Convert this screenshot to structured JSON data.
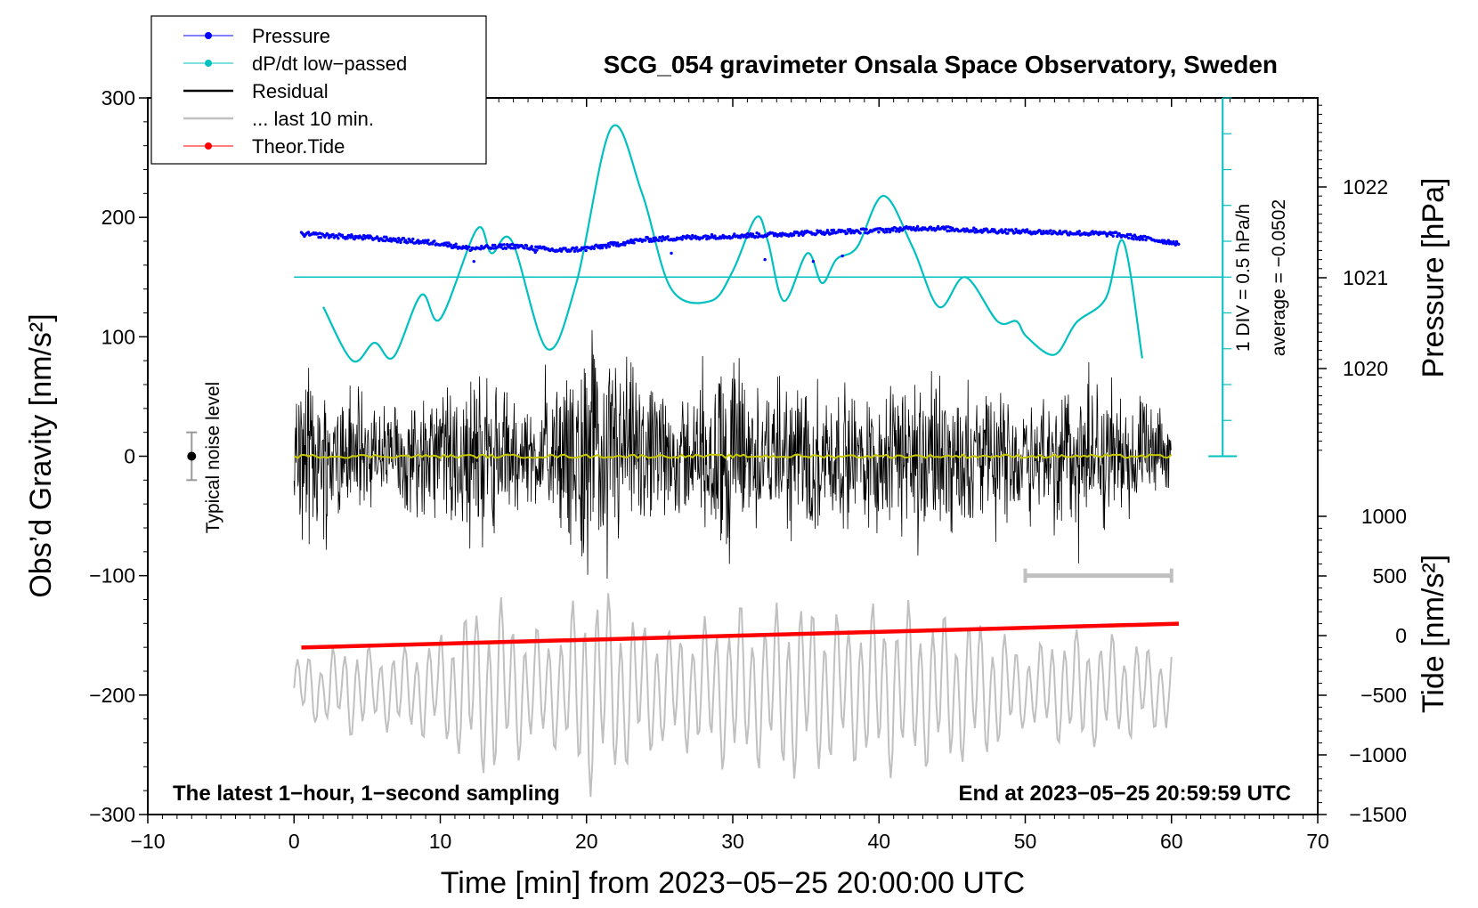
{
  "chart_data": {
    "type": "line",
    "title": "SCG_054 gravimeter Onsala Space Observatory, Sweden",
    "xlabel": "Time [min] from 2023−05−25 20:00:00 UTC",
    "ylabel": "Obs’d Gravity [nm/s²]",
    "y2label_pressure": "Pressure [hPa]",
    "y2label_tide": "Tide [nm/s²]",
    "xlim": [
      -10,
      70
    ],
    "ylim": [
      -300,
      300
    ],
    "x_ticks": [
      "−10",
      "0",
      "10",
      "20",
      "30",
      "40",
      "50",
      "60",
      "70"
    ],
    "y_ticks": [
      "300",
      "200",
      "100",
      "0",
      "−100",
      "−200",
      "−300"
    ],
    "pressure_ticks": [
      "1022",
      "1021",
      "1020"
    ],
    "pressure_tick_values": [
      1022,
      1021,
      1020
    ],
    "pressure_range_hpa": [
      1019,
      1023
    ],
    "tide_ticks": [
      "1000",
      "500",
      "0",
      "−500",
      "−1000",
      "−1500"
    ],
    "tide_tick_values": [
      1000,
      500,
      0,
      -500,
      -1000,
      -1500
    ],
    "tide_range": [
      -1500,
      1000
    ],
    "legend": [
      {
        "label": "Pressure",
        "color": "#0000ff",
        "style": "line-dot"
      },
      {
        "label": "dP/dt low−passed",
        "color": "#00c0c0",
        "style": "line-dot"
      },
      {
        "label": "Residual",
        "color": "#000000",
        "style": "line"
      },
      {
        "label": "... last 10 min.",
        "color": "#c0c0c0",
        "style": "line"
      },
      {
        "label": "Theor.Tide",
        "color": "#ff0000",
        "style": "line-dot"
      }
    ],
    "annotations": {
      "left_note": "The latest 1−hour, 1−second sampling",
      "right_note": "End at 2023−05−25 20:59:59 UTC",
      "noise_label": "Typical noise level",
      "div_label": "1 DIV = 0.5 hPa/h",
      "average_label": "average = −0.0502"
    },
    "noise_level": {
      "x": -7,
      "y": 0,
      "err": 20
    },
    "ten_min_bar": {
      "x_start": 50,
      "x_end": 60,
      "y": -100
    },
    "series": [
      {
        "name": "Pressure",
        "axis": "pressure_hpa",
        "color": "#0000ff",
        "x": [
          0.5,
          5,
          10,
          12,
          15,
          18,
          20,
          24,
          28,
          32,
          36,
          40,
          43,
          47,
          52,
          56,
          60.5
        ],
        "values": [
          1021.48,
          1021.44,
          1021.38,
          1021.32,
          1021.35,
          1021.3,
          1021.32,
          1021.42,
          1021.45,
          1021.47,
          1021.5,
          1021.52,
          1021.55,
          1021.52,
          1021.5,
          1021.48,
          1021.38
        ]
      },
      {
        "name": "dP/dt low−passed",
        "axis": "gravity",
        "color": "#00c0c0",
        "x": [
          2,
          4,
          5.5,
          6.8,
          8.7,
          10,
          12.5,
          13.5,
          14.9,
          17.3,
          19.3,
          21.7,
          23.8,
          25.8,
          28.5,
          30,
          31.6,
          32.4,
          33.5,
          35.1,
          36.1,
          37.1,
          38.5,
          40.3,
          42.3,
          44.1,
          45.9,
          48.1,
          49.4,
          50.1,
          52,
          53.5,
          55.5,
          56.7,
          58
        ],
        "values": [
          125,
          80,
          95,
          83,
          135,
          115,
          190,
          170,
          180,
          90,
          145,
          275,
          220,
          140,
          130,
          155,
          200,
          180,
          130,
          170,
          145,
          165,
          175,
          218,
          175,
          125,
          150,
          113,
          113,
          100,
          85,
          112,
          132,
          180,
          82
        ]
      },
      {
        "name": "Residual envelope",
        "axis": "gravity",
        "color": "#000000",
        "x": [
          0,
          2,
          4,
          6,
          8,
          10,
          12,
          14,
          16,
          18,
          20,
          22,
          24,
          26,
          28,
          30,
          32,
          34,
          36,
          38,
          40,
          42,
          44,
          46,
          48,
          50,
          52,
          54,
          56,
          58,
          60
        ],
        "values": [
          80,
          75,
          72,
          55,
          55,
          65,
          90,
          70,
          50,
          65,
          115,
          110,
          70,
          60,
          70,
          110,
          65,
          80,
          75,
          65,
          75,
          80,
          80,
          65,
          60,
          60,
          75,
          75,
          65,
          55,
          35
        ]
      },
      {
        "name": "Residual running mean",
        "axis": "gravity",
        "color": "#c8c800",
        "x": [
          0,
          60
        ],
        "values": [
          0,
          0
        ]
      },
      {
        "name": "... last 10 min. envelope",
        "axis": "gravity",
        "color": "#c0c0c0",
        "x": [
          0,
          2,
          4,
          6,
          8,
          10,
          12,
          14,
          16,
          18,
          20,
          22,
          24,
          26,
          28,
          30,
          32,
          34,
          36,
          38,
          40,
          42,
          44,
          46,
          48,
          50,
          52,
          54,
          56,
          58,
          60
        ],
        "values": [
          20,
          25,
          30,
          25,
          30,
          35,
          55,
          60,
          40,
          40,
          70,
          60,
          45,
          40,
          45,
          55,
          50,
          60,
          55,
          50,
          55,
          55,
          50,
          50,
          40,
          25,
          35,
          40,
          35,
          30,
          25
        ]
      },
      {
        "name": "Theor.Tide",
        "axis": "tide",
        "color": "#ff0000",
        "x": [
          0.5,
          60.5
        ],
        "values": [
          -100,
          100
        ]
      }
    ]
  }
}
